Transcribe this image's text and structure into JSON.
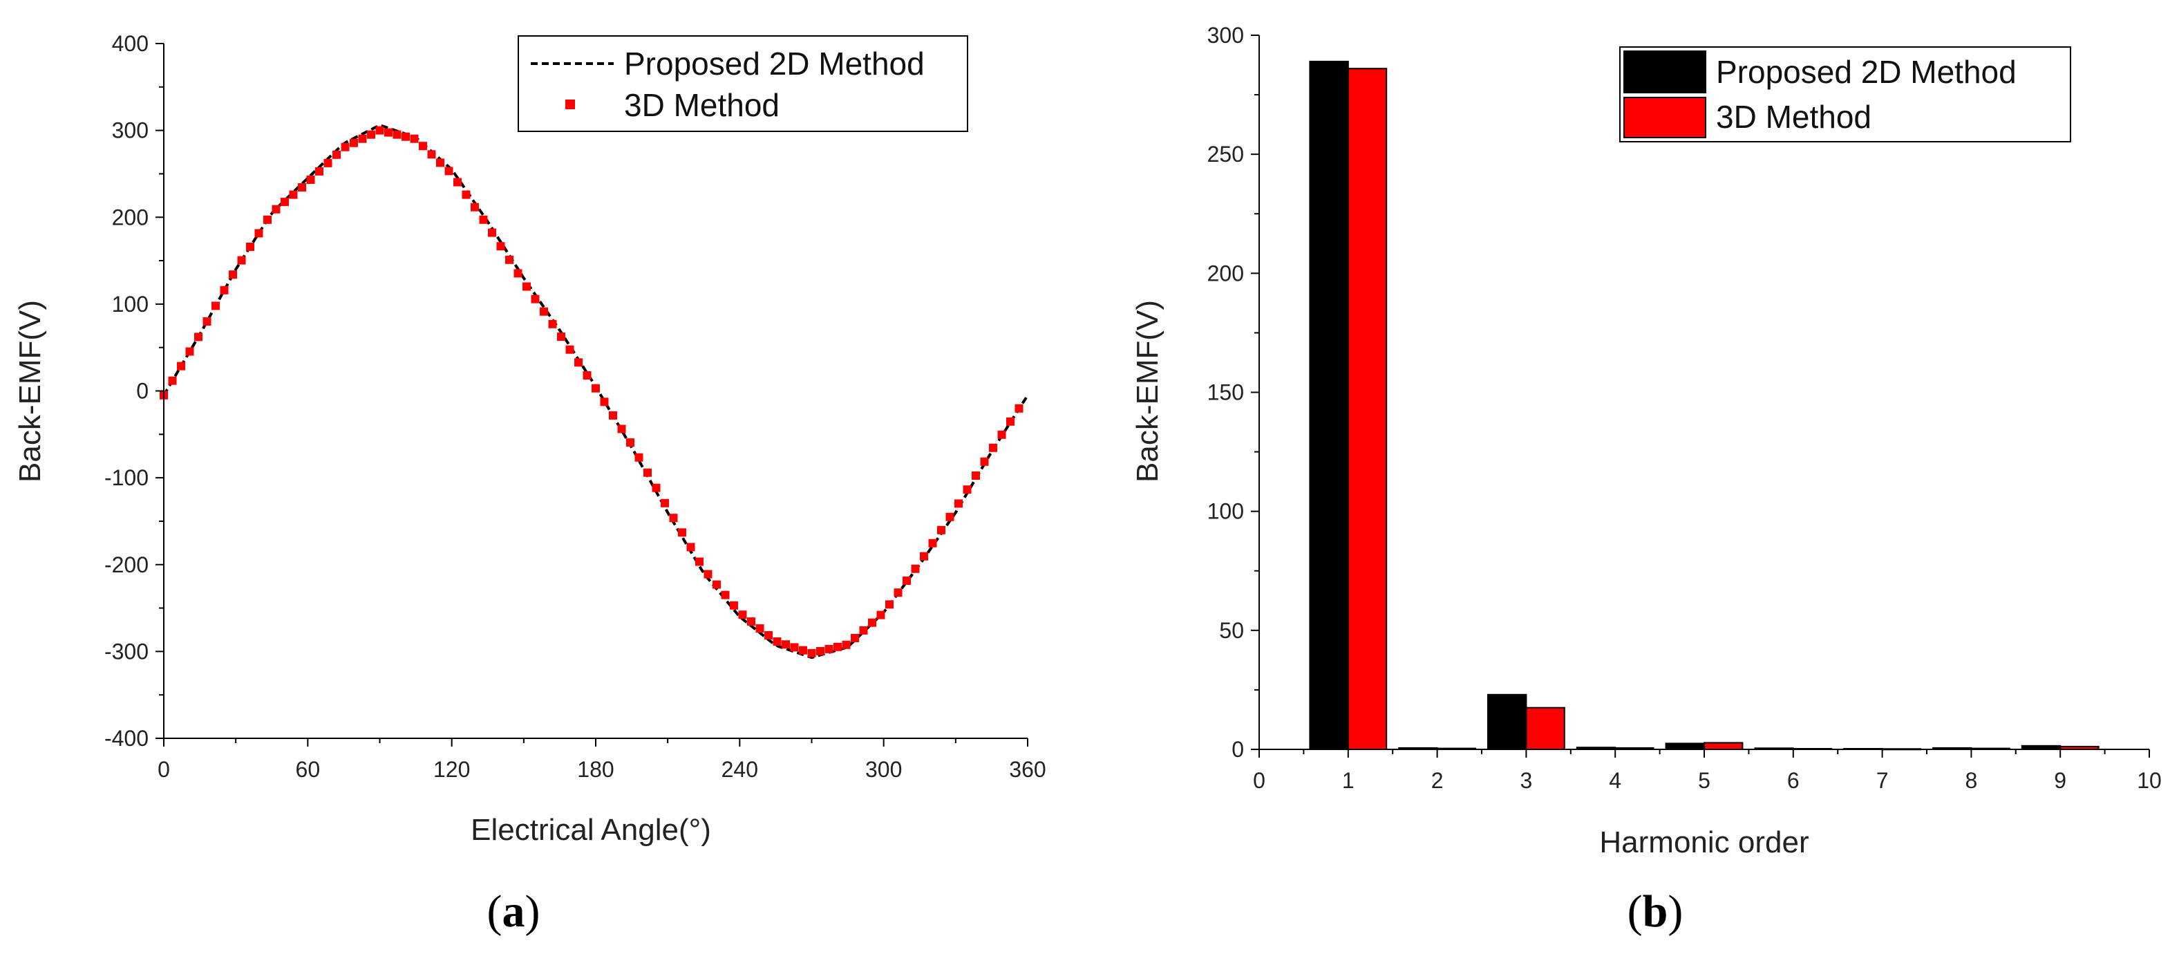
{
  "colors": {
    "proposed": "#000000",
    "method3d": "#ff0000",
    "axis": "#000000"
  },
  "chart_data": [
    {
      "type": "line",
      "caption": {
        "open": "(",
        "letter": "a",
        "close": ")"
      },
      "xlabel": "Electrical Angle(°)",
      "ylabel": "Back-EMF(V)",
      "xlim": [
        0,
        360
      ],
      "ylim": [
        -400,
        400
      ],
      "xticks": [
        0,
        60,
        120,
        180,
        240,
        300,
        360
      ],
      "yticks": [
        -400,
        -300,
        -200,
        -100,
        0,
        100,
        200,
        300,
        400
      ],
      "grid": false,
      "legend_position": "top-right",
      "series": [
        {
          "name": "Proposed 2D Method",
          "style": "dashed-line",
          "x": [
            0,
            15,
            30,
            45,
            60,
            75,
            90,
            105,
            120,
            135,
            150,
            165,
            180,
            195,
            210,
            225,
            240,
            255,
            270,
            285,
            300,
            315,
            330,
            345,
            360
          ],
          "y": [
            -5,
            65,
            140,
            205,
            245,
            285,
            306,
            292,
            255,
            195,
            130,
            70,
            5,
            -65,
            -140,
            -210,
            -260,
            -293,
            -307,
            -295,
            -255,
            -200,
            -140,
            -70,
            -5
          ]
        },
        {
          "name": "3D Method",
          "style": "square-markers",
          "x": [
            0,
            15,
            30,
            45,
            60,
            75,
            90,
            105,
            120,
            135,
            150,
            165,
            180,
            195,
            210,
            225,
            240,
            255,
            270,
            285,
            300,
            315,
            330,
            345,
            360
          ],
          "y": [
            -5,
            65,
            140,
            205,
            240,
            280,
            300,
            290,
            250,
            190,
            125,
            65,
            3,
            -62,
            -135,
            -205,
            -255,
            -288,
            -302,
            -292,
            -255,
            -198,
            -135,
            -68,
            -5
          ]
        }
      ]
    },
    {
      "type": "bar",
      "caption": {
        "open": "(",
        "letter": "b",
        "close": ")"
      },
      "xlabel": "Harmonic order",
      "ylabel": "Back-EMF(V)",
      "xlim": [
        0,
        10
      ],
      "ylim": [
        0,
        300
      ],
      "xticks": [
        0,
        1,
        2,
        3,
        4,
        5,
        6,
        7,
        8,
        9,
        10
      ],
      "yticks": [
        0,
        50,
        100,
        150,
        200,
        250,
        300
      ],
      "grid": false,
      "legend_position": "top-right",
      "categories": [
        1,
        2,
        3,
        4,
        5,
        6,
        7,
        8,
        9
      ],
      "series": [
        {
          "name": "Proposed 2D Method",
          "values": [
            289,
            0.6,
            23,
            0.8,
            2.5,
            0.5,
            0.3,
            0.6,
            1.5
          ]
        },
        {
          "name": "3D Method",
          "values": [
            286,
            0.4,
            17.5,
            0.6,
            2.8,
            0.3,
            0.2,
            0.4,
            1.2
          ]
        }
      ]
    }
  ]
}
